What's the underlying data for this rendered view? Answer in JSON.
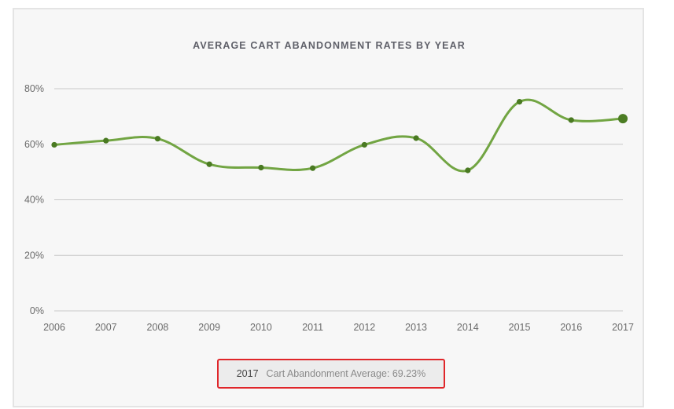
{
  "chart_data": {
    "type": "line",
    "title": "AVERAGE CART ABANDONMENT RATES BY YEAR",
    "xlabel": "",
    "ylabel": "",
    "categories": [
      "2006",
      "2007",
      "2008",
      "2009",
      "2010",
      "2011",
      "2012",
      "2013",
      "2014",
      "2015",
      "2016",
      "2017"
    ],
    "series": [
      {
        "name": "Cart Abandonment Average",
        "values": [
          59.8,
          61.3,
          62.0,
          52.8,
          51.6,
          51.4,
          59.8,
          62.2,
          50.6,
          75.3,
          68.7,
          69.23
        ]
      }
    ],
    "ylim": [
      0,
      80
    ],
    "yticks": [
      0,
      20,
      40,
      60,
      80
    ],
    "ytick_labels": [
      "0%",
      "20%",
      "40%",
      "60%",
      "80%"
    ],
    "grid": true,
    "colors": {
      "line": "#72a543",
      "marker": "#4a7a22",
      "grid": "#c8c8c8"
    },
    "highlighted_index": 11
  },
  "tooltip": {
    "year": "2017",
    "label": "Cart Abandonment Average: 69.23%"
  }
}
